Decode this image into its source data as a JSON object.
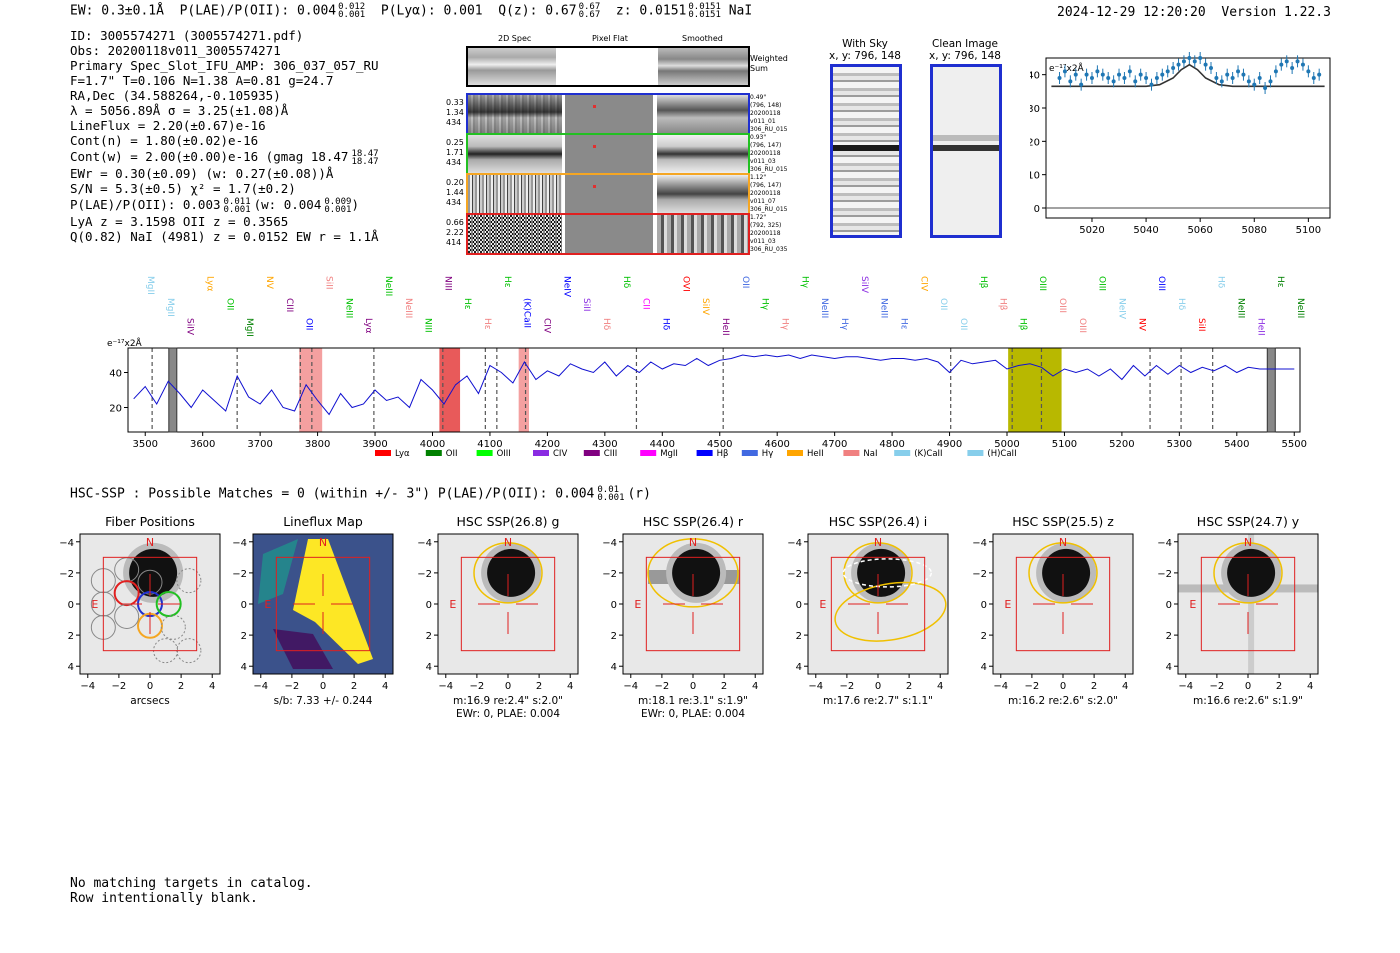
{
  "header": {
    "ew": "EW: 0.3±0.1Å",
    "plae_label": "P(LAE)/P(OII): 0.004",
    "plae_sup": "0.012",
    "plae_sub": "0.001",
    "plya": "P(Lyα): 0.001",
    "qz_label": "Q(z): 0.67",
    "qz_sup": "0.67",
    "qz_sub": "0.67",
    "z_label": "z: 0.0151",
    "z_sup": "0.0151",
    "z_sub": "0.0151",
    "line_name": "NaI",
    "timestamp": "2024-12-29 12:20:20",
    "version": "Version 1.22.3"
  },
  "info": {
    "l1": "ID: 3005574271 (3005574271.pdf)",
    "l2": "Obs: 20200118v011_3005574271",
    "l3": "Primary Spec_Slot_IFU_AMP: 306_037_057_RU",
    "l4": "F=1.7\"  T=0.106  N=1.38  A=0.81  g=24.7",
    "l5": "RA,Dec (34.588264,-0.105935)",
    "l6": "λ = 5056.89Å  σ = 3.25(±1.08)Å",
    "l7": "LineFlux = 2.20(±0.67)e-16",
    "l8": "Cont(n) = 1.80(±0.02)e-16",
    "l9a": "Cont(w) = 2.00(±0.00)e-16 (gmag 18.47",
    "l9sup": "18.47",
    "l9sub": "18.47",
    "l10": "EWr = 0.30(±0.09) (w: 0.27(±0.08))Å",
    "l11": "S/N = 5.3(±0.5)  χ² = 1.7(±0.2)",
    "l12a": "P(LAE)/P(OII): 0.003",
    "l12sup1": "0.011",
    "l12sub1": "0.001",
    "l12b": "(w: 0.004",
    "l12sup2": "0.009",
    "l12sub2": "0.001",
    "l12c": ")",
    "l13": "LyA z = 3.1598   OII z = 0.3565",
    "l14": "Q(0.82) NaI (4981) z = 0.0152  EW r = 1.1Å"
  },
  "spec2d": {
    "col_headers": [
      "2D Spec",
      "Pixel Flat",
      "Smoothed"
    ],
    "weighted_label": "Weighted Sum",
    "rows": [
      {
        "left": [
          "0.33",
          "1.34",
          "434"
        ],
        "right": [
          "0.49\"",
          "(796, 148)",
          "20200118",
          "v011_01",
          "306_RU_015"
        ],
        "color": "#1f2fd0"
      },
      {
        "left": [
          "0.25",
          "1.71",
          "434"
        ],
        "right": [
          "0.93\"",
          "(796, 147)",
          "20200118",
          "v011_03",
          "306_RU_015"
        ],
        "color": "#22c022"
      },
      {
        "left": [
          "0.20",
          "1.44",
          "434"
        ],
        "right": [
          "1.12\"",
          "(796, 147)",
          "20200118",
          "v011_07",
          "306_RU_015"
        ],
        "color": "#f5a623"
      },
      {
        "left": [
          "0.66",
          "2.22",
          "414"
        ],
        "right": [
          "1.72\"",
          "(792, 325)",
          "20200118",
          "v011_03",
          "306_RU_035"
        ],
        "color": "#e02020"
      }
    ]
  },
  "sky_panels": {
    "with_sky_title": "With Sky",
    "with_sky_coords": "x, y: 796, 148",
    "clean_title": "Clean Image",
    "clean_coords": "x, y: 796, 148"
  },
  "zoom_spectrum": {
    "unit_label": "e⁻¹⁷x2Å",
    "x_ticks": [
      "5020",
      "5040",
      "5060",
      "5080",
      "5100"
    ],
    "y_ticks": [
      "0",
      "10",
      "20",
      "30",
      "40"
    ]
  },
  "full_spectrum": {
    "unit_label": "e⁻¹⁷x2Å",
    "x_ticks": [
      "3500",
      "3600",
      "3700",
      "3800",
      "3900",
      "4000",
      "4100",
      "4200",
      "4300",
      "4400",
      "4500",
      "4600",
      "4700",
      "4800",
      "4900",
      "5000",
      "5100",
      "5200",
      "5300",
      "5400",
      "5500"
    ],
    "y_ticks": [
      "20",
      "40"
    ],
    "legend": [
      {
        "label": "Lyα",
        "color": "#ff0000"
      },
      {
        "label": "OII",
        "color": "#008000"
      },
      {
        "label": "OIII",
        "color": "#00ff00"
      },
      {
        "label": "CIV",
        "color": "#8a2be2"
      },
      {
        "label": "CIII",
        "color": "#800080"
      },
      {
        "label": "MgII",
        "color": "#ff00ff"
      },
      {
        "label": "Hβ",
        "color": "#0000ff"
      },
      {
        "label": "Hγ",
        "color": "#4169e1"
      },
      {
        "label": "HeII",
        "color": "#ffa500"
      },
      {
        "label": "NaI",
        "color": "#f08080"
      },
      {
        "label": "(K)CaII",
        "color": "#87ceeb"
      },
      {
        "label": "(H)CaII",
        "color": "#87ceeb"
      }
    ],
    "top_lines": [
      {
        "label": "MgII",
        "color": "#87ceeb"
      },
      {
        "label": "MgII",
        "color": "#87ceeb"
      },
      {
        "label": "SiIV",
        "color": "#800080"
      },
      {
        "label": "Lyα",
        "color": "#ffa500"
      },
      {
        "label": "OII",
        "color": "#00c000"
      },
      {
        "label": "MgII",
        "color": "#008000"
      },
      {
        "label": "NV",
        "color": "#ffa500"
      },
      {
        "label": "CIII",
        "color": "#800080"
      },
      {
        "label": "OII",
        "color": "#0000ff"
      },
      {
        "label": "SiII",
        "color": "#f08080"
      },
      {
        "label": "NeIII",
        "color": "#00c000"
      },
      {
        "label": "Lyα",
        "color": "#800080"
      },
      {
        "label": "NeIII",
        "color": "#00c000"
      },
      {
        "label": "NeIII",
        "color": "#f08080"
      },
      {
        "label": "NIII",
        "color": "#00c000"
      },
      {
        "label": "NIII",
        "color": "#800080"
      },
      {
        "label": "Hε",
        "color": "#00c000"
      },
      {
        "label": "Hε",
        "color": "#f08080"
      },
      {
        "label": "Hε",
        "color": "#00c000"
      },
      {
        "label": "(K)CaII",
        "color": "#0000ff"
      },
      {
        "label": "CIV",
        "color": "#800080"
      },
      {
        "label": "NeIV",
        "color": "#0000ff"
      },
      {
        "label": "SiII",
        "color": "#8a2be2"
      },
      {
        "label": "Hδ",
        "color": "#f08080"
      },
      {
        "label": "Hδ",
        "color": "#00c000"
      },
      {
        "label": "CII",
        "color": "#ff00ff"
      },
      {
        "label": "Hδ",
        "color": "#0000ff"
      },
      {
        "label": "OVI",
        "color": "#ff0000"
      },
      {
        "label": "SiIV",
        "color": "#ffa500"
      },
      {
        "label": "HeII",
        "color": "#800080"
      },
      {
        "label": "OII",
        "color": "#4169e1"
      },
      {
        "label": "Hγ",
        "color": "#00c000"
      },
      {
        "label": "Hγ",
        "color": "#f08080"
      },
      {
        "label": "Hγ",
        "color": "#00c000"
      },
      {
        "label": "NeIII",
        "color": "#4169e1"
      },
      {
        "label": "Hγ",
        "color": "#4169e1"
      },
      {
        "label": "SiIV",
        "color": "#8a2be2"
      },
      {
        "label": "NeIII",
        "color": "#4169e1"
      },
      {
        "label": "Hε",
        "color": "#4169e1"
      },
      {
        "label": "CIV",
        "color": "#ffa500"
      },
      {
        "label": "OII",
        "color": "#87ceeb"
      },
      {
        "label": "OII",
        "color": "#87ceeb"
      },
      {
        "label": "Hβ",
        "color": "#00c000"
      },
      {
        "label": "Hβ",
        "color": "#f08080"
      },
      {
        "label": "Hβ",
        "color": "#00c000"
      },
      {
        "label": "OIII",
        "color": "#00c000"
      },
      {
        "label": "OIII",
        "color": "#f08080"
      },
      {
        "label": "OIII",
        "color": "#f08080"
      },
      {
        "label": "OIII",
        "color": "#00c000"
      },
      {
        "label": "NeIV",
        "color": "#87ceeb"
      },
      {
        "label": "NV",
        "color": "#ff0000"
      },
      {
        "label": "OIII",
        "color": "#0000ff"
      },
      {
        "label": "Hδ",
        "color": "#87ceeb"
      },
      {
        "label": "SiII",
        "color": "#ff0000"
      },
      {
        "label": "Hδ",
        "color": "#87ceeb"
      },
      {
        "label": "NeIII",
        "color": "#008000"
      },
      {
        "label": "HeII",
        "color": "#8a2be2"
      },
      {
        "label": "Hε",
        "color": "#008000"
      },
      {
        "label": "NeIII",
        "color": "#008000"
      }
    ]
  },
  "hsc": {
    "summary_a": "HSC-SSP : Possible Matches = 0 (within +/- 3\")  P(LAE)/P(OII): 0.004",
    "summary_sup": "0.01",
    "summary_sub": "0.001",
    "summary_b": "(r)",
    "axis_ticks": [
      "−4",
      "−2",
      "0",
      "2",
      "4"
    ],
    "cutouts": [
      {
        "title": "Fiber Positions",
        "cap1": "arcsecs",
        "cap2": ""
      },
      {
        "title": "Lineflux Map",
        "cap1": "s/b: 7.33 +/- 0.244",
        "cap2": ""
      },
      {
        "title": "HSC SSP(26.8) g",
        "cap1": "m:16.9  re:2.4\"  s:2.0\"",
        "cap2": "EWr: 0, PLAE: 0.004"
      },
      {
        "title": "HSC SSP(26.4) r",
        "cap1": "m:18.1  re:3.1\"  s:1.9\"",
        "cap2": "EWr: 0, PLAE: 0.004"
      },
      {
        "title": "HSC SSP(26.4) i",
        "cap1": "m:17.6  re:2.7\"  s:1.1\"",
        "cap2": ""
      },
      {
        "title": "HSC SSP(25.5) z",
        "cap1": "m:16.2  re:2.6\"  s:2.0\"",
        "cap2": ""
      },
      {
        "title": "HSC SSP(24.7) y",
        "cap1": "m:16.6  re:2.6\"  s:1.9\"",
        "cap2": ""
      }
    ],
    "north": "N",
    "east": "E"
  },
  "footer": {
    "line1": "No matching targets in catalog.",
    "line2": "Row intentionally blank."
  },
  "chart_data": [
    {
      "type": "line",
      "title": "",
      "xlabel": "",
      "ylabel": "e-17 x2Å",
      "xlim": [
        3470,
        5510
      ],
      "ylim": [
        6,
        54
      ],
      "series": [
        {
          "name": "spectrum",
          "x": [
            3480,
            3500,
            3520,
            3540,
            3560,
            3580,
            3600,
            3620,
            3640,
            3660,
            3680,
            3700,
            3720,
            3740,
            3760,
            3780,
            3800,
            3820,
            3840,
            3860,
            3880,
            3900,
            3920,
            3940,
            3960,
            3980,
            4000,
            4020,
            4040,
            4060,
            4080,
            4100,
            4120,
            4140,
            4160,
            4180,
            4200,
            4220,
            4240,
            4260,
            4280,
            4300,
            4320,
            4340,
            4360,
            4380,
            4400,
            4420,
            4440,
            4460,
            4480,
            4500,
            4520,
            4540,
            4560,
            4580,
            4600,
            4620,
            4640,
            4660,
            4680,
            4700,
            4720,
            4740,
            4760,
            4780,
            4800,
            4820,
            4840,
            4860,
            4880,
            4900,
            4920,
            4940,
            4960,
            4980,
            5000,
            5020,
            5040,
            5060,
            5080,
            5100,
            5120,
            5140,
            5160,
            5180,
            5200,
            5220,
            5240,
            5260,
            5280,
            5300,
            5320,
            5340,
            5360,
            5380,
            5400,
            5420,
            5440,
            5460,
            5480,
            5500
          ],
          "y": [
            25,
            32,
            22,
            35,
            28,
            20,
            30,
            24,
            18,
            38,
            26,
            22,
            30,
            20,
            18,
            33,
            24,
            16,
            28,
            20,
            22,
            30,
            24,
            26,
            20,
            36,
            30,
            22,
            33,
            38,
            28,
            44,
            40,
            34,
            46,
            36,
            41,
            38,
            45,
            42,
            40,
            46,
            38,
            44,
            40,
            46,
            42,
            45,
            44,
            48,
            44,
            47,
            48,
            50,
            49,
            50,
            49,
            50,
            48,
            50,
            49,
            48,
            49,
            49,
            48,
            47,
            48,
            48,
            47,
            48,
            46,
            40,
            47,
            45,
            46,
            47,
            42,
            44,
            45,
            43,
            38,
            42,
            40,
            42,
            38,
            42,
            36,
            44,
            38,
            44,
            39,
            44,
            40,
            43,
            41,
            44,
            40,
            43,
            42,
            42,
            42,
            42
          ]
        }
      ],
      "shaded_regions": [
        {
          "x0": 3768,
          "x1": 3808,
          "color": "#f4a0a0"
        },
        {
          "x0": 4012,
          "x1": 4048,
          "color": "#e85a5a"
        },
        {
          "x0": 4150,
          "x1": 4168,
          "color": "#f4a0a0"
        },
        {
          "x0": 5002,
          "x1": 5095,
          "color": "#b8b800"
        }
      ],
      "dashed_lines": [
        3512,
        3660,
        3770,
        3790,
        3898,
        4018,
        4092,
        4112,
        4162,
        4355,
        4506,
        4902,
        5009,
        5060,
        5249,
        5303,
        5358
      ]
    },
    {
      "type": "scatter",
      "title": "",
      "xlabel": "",
      "ylabel": "e-17 x2Å",
      "xlim": [
        5003,
        5108
      ],
      "ylim": [
        -3,
        45
      ],
      "series": [
        {
          "name": "data",
          "x": [
            5008,
            5010,
            5012,
            5014,
            5016,
            5018,
            5020,
            5022,
            5024,
            5026,
            5028,
            5030,
            5032,
            5034,
            5036,
            5038,
            5040,
            5042,
            5044,
            5046,
            5048,
            5050,
            5052,
            5054,
            5056,
            5058,
            5060,
            5062,
            5064,
            5066,
            5068,
            5070,
            5072,
            5074,
            5076,
            5078,
            5080,
            5082,
            5084,
            5086,
            5088,
            5090,
            5092,
            5094,
            5096,
            5098,
            5100,
            5102,
            5104
          ],
          "y": [
            39,
            41,
            38,
            40,
            37,
            40,
            39,
            41,
            40,
            39,
            38,
            40,
            39,
            41,
            38,
            40,
            39,
            37,
            39,
            40,
            41,
            42,
            43,
            44,
            45,
            44,
            45,
            43,
            42,
            39,
            38,
            40,
            39,
            41,
            40,
            38,
            37,
            39,
            36,
            38,
            41,
            43,
            44,
            42,
            44,
            43,
            41,
            39,
            40
          ],
          "error": 1.8
        },
        {
          "name": "model",
          "x": [
            5005,
            5040,
            5045,
            5050,
            5053,
            5056,
            5059,
            5062,
            5067,
            5072,
            5106
          ],
          "y": [
            36.5,
            36.5,
            37,
            39,
            41.5,
            43,
            41.5,
            39,
            37,
            36.5,
            36.5
          ]
        }
      ]
    }
  ]
}
